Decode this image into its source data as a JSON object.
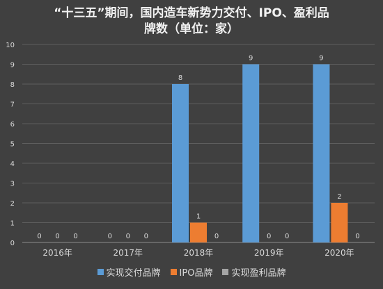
{
  "chart_data": {
    "type": "bar",
    "title_lines": [
      "“十三五”期间，国内造车新势力交付、IPO、盈利品",
      "牌数（单位：家）"
    ],
    "categories": [
      "2016年",
      "2017年",
      "2018年",
      "2019年",
      "2020年"
    ],
    "series": [
      {
        "name": "实现交付品牌",
        "values": [
          0,
          0,
          8,
          9,
          9
        ],
        "color": "#5b9bd5"
      },
      {
        "name": "IPO品牌",
        "values": [
          0,
          0,
          1,
          0,
          2
        ],
        "color": "#ed7d31"
      },
      {
        "name": "实现盈利品牌",
        "values": [
          0,
          0,
          0,
          0,
          0
        ],
        "color": "#a5a5a5"
      }
    ],
    "ylim": [
      0,
      10
    ],
    "yticks": [
      0,
      1,
      2,
      3,
      4,
      5,
      6,
      7,
      8,
      9,
      10
    ],
    "grid": true,
    "legend_position": "bottom"
  }
}
